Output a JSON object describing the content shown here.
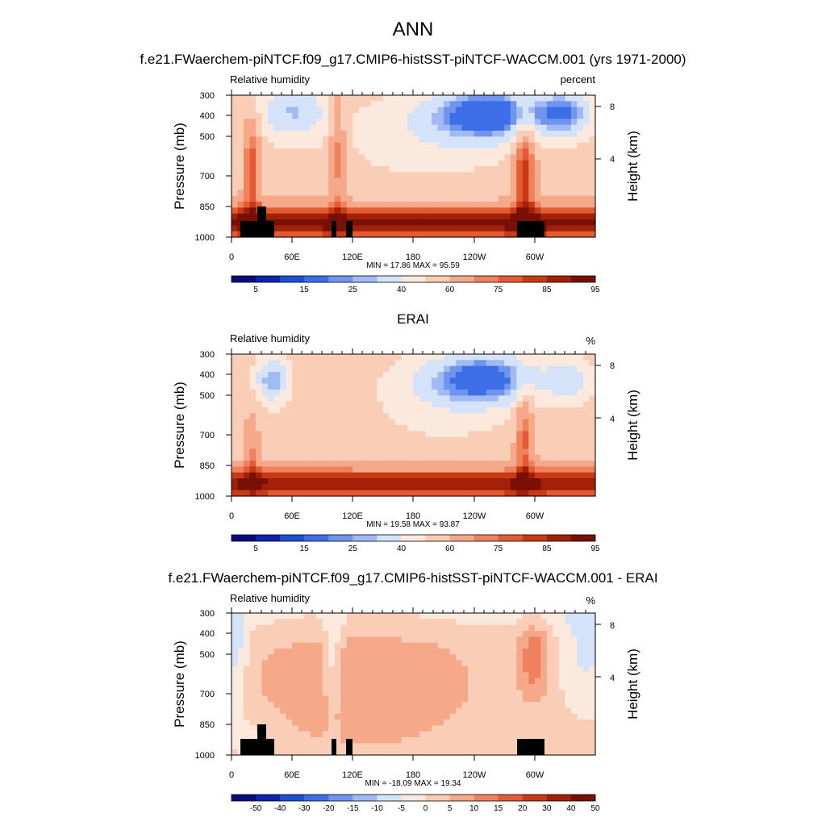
{
  "figure": {
    "title": "ANN",
    "colors": {
      "abs": [
        "#0a0a7d",
        "#1020b0",
        "#1a4fd6",
        "#3d6ee8",
        "#6f95ef",
        "#a2baf4",
        "#d5e3f9",
        "#fbe9dd",
        "#f9cdb6",
        "#f5a989",
        "#f0815e",
        "#e45a32",
        "#c93a14",
        "#a02008",
        "#781008"
      ],
      "diff": [
        "#0a0a7d",
        "#1020b0",
        "#1a4fd6",
        "#3d6ee8",
        "#6f95ef",
        "#a2baf4",
        "#d5e3f9",
        "#fbe9dd",
        "#f9cdb6",
        "#f5a989",
        "#f0815e",
        "#e45a32",
        "#c93a14",
        "#a02008",
        "#781008"
      ]
    }
  },
  "chart_data": [
    {
      "type": "heatmap",
      "panel_title": "f.e21.FWaerchem-piNTCF.f09_g17.CMIP6-histSST-piNTCF-WACCM.001 (yrs 1971-2000)",
      "left_label": "Relative humidity",
      "right_label": "percent",
      "ylabel": "Pressure (mb)",
      "ylabel_right": "Height (km)",
      "xticks": [
        "0",
        "60E",
        "120E",
        "180",
        "120W",
        "60W"
      ],
      "yticks": [
        "300",
        "400",
        "500",
        "700",
        "850",
        "1000"
      ],
      "rticks": [
        "8",
        "4"
      ],
      "stats": "MIN = 17.86  MAX = 95.59",
      "colorbar_labels": [
        "5",
        "15",
        "25",
        "40",
        "60",
        "75",
        "85",
        "95"
      ],
      "colorbar_kind": "abs",
      "field": "model",
      "xlim": [
        0,
        360
      ],
      "ylim": [
        1000,
        300
      ]
    },
    {
      "type": "heatmap",
      "panel_title": "ERAI",
      "left_label": "Relative humidity",
      "right_label": "%",
      "ylabel": "Pressure (mb)",
      "ylabel_right": "Height (km)",
      "xticks": [
        "0",
        "60E",
        "120E",
        "180",
        "120W",
        "60W"
      ],
      "yticks": [
        "300",
        "400",
        "500",
        "700",
        "850",
        "1000"
      ],
      "rticks": [
        "8",
        "4"
      ],
      "stats": "MIN = 19.58  MAX = 93.87",
      "colorbar_labels": [
        "5",
        "15",
        "25",
        "40",
        "60",
        "75",
        "85",
        "95"
      ],
      "colorbar_kind": "abs",
      "field": "obs",
      "xlim": [
        0,
        360
      ],
      "ylim": [
        1000,
        300
      ]
    },
    {
      "type": "heatmap",
      "panel_title": "f.e21.FWaerchem-piNTCF.f09_g17.CMIP6-histSST-piNTCF-WACCM.001 - ERAI",
      "left_label": "Relative humidity",
      "right_label": "%",
      "ylabel": "Pressure (mb)",
      "ylabel_right": "Height (km)",
      "xticks": [
        "0",
        "60E",
        "120E",
        "180",
        "120W",
        "60W"
      ],
      "yticks": [
        "300",
        "400",
        "500",
        "700",
        "850",
        "1000"
      ],
      "rticks": [
        "8",
        "4"
      ],
      "stats": "MIN = -18.09  MAX = 19.34",
      "colorbar_labels": [
        "-50",
        "-40",
        "-30",
        "-20",
        "-15",
        "-10",
        "-5",
        "0",
        "5",
        "10",
        "15",
        "20",
        "30",
        "40",
        "50"
      ],
      "colorbar_kind": "diff",
      "field": "diff",
      "xlim": [
        0,
        360
      ],
      "ylim": [
        1000,
        300
      ]
    }
  ]
}
